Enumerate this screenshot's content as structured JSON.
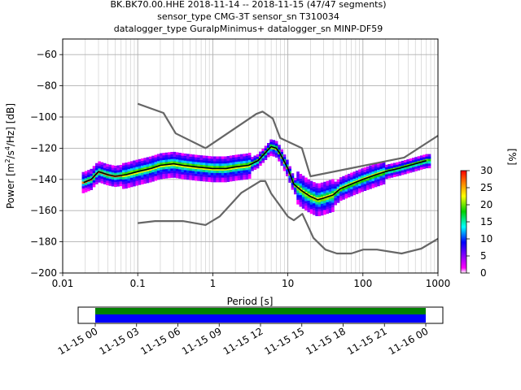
{
  "title": {
    "line1": "BK.BK70.00.HHE   2018-11-14 -- 2018-11-15  (47/47 segments)",
    "line2": "sensor_type CMG-3T sensor_sn T310034",
    "line3": "datalogger_type GuralpMinimus+ datalogger_sn MINP-DF59"
  },
  "chart_data": {
    "type": "heatmap",
    "xlabel": "Period [s]",
    "ylabel": "Power [m²/s⁴/Hz] [dB]",
    "x_scale": "log",
    "xlim": [
      0.01,
      1000
    ],
    "ylim": [
      -200,
      -50
    ],
    "x_ticks": [
      {
        "value": 0.01,
        "label": "0.01"
      },
      {
        "value": 0.1,
        "label": "0.1"
      },
      {
        "value": 1,
        "label": "1"
      },
      {
        "value": 10,
        "label": "10"
      },
      {
        "value": 100,
        "label": "100"
      },
      {
        "value": 1000,
        "label": "1000"
      }
    ],
    "y_ticks": [
      -60,
      -80,
      -100,
      -120,
      -140,
      -160,
      -180,
      -200
    ],
    "grid": true,
    "colorbar": {
      "label": "[%]",
      "range": [
        0,
        30
      ],
      "ticks": [
        0,
        5,
        10,
        15,
        20,
        25,
        30
      ],
      "colors": [
        "#ffffff",
        "#ff00ff",
        "#0000ff",
        "#00ffff",
        "#00d000",
        "#ffff00",
        "#ff8000",
        "#ff0000"
      ]
    },
    "series": [
      {
        "role": "mode",
        "color": "#000000",
        "x": [
          0.019,
          0.024,
          0.03,
          0.04,
          0.05,
          0.07,
          0.1,
          0.15,
          0.2,
          0.3,
          0.4,
          0.6,
          1.0,
          1.5,
          2.0,
          3.0,
          4.0,
          5.0,
          6.0,
          7.0,
          8.0,
          10,
          12,
          15,
          20,
          25,
          30,
          40,
          50,
          70,
          100,
          150,
          200,
          300,
          500,
          700
        ],
        "y": [
          -142,
          -140,
          -135,
          -137,
          -138,
          -137,
          -135,
          -133,
          -131,
          -130,
          -131,
          -132,
          -133,
          -133,
          -132,
          -131,
          -128,
          -123,
          -119,
          -120,
          -124,
          -133,
          -143,
          -147,
          -151,
          -153,
          -152,
          -150,
          -146,
          -143,
          -140,
          -137,
          -135,
          -133,
          -130,
          -128
        ]
      },
      {
        "role": "new-high-noise-model",
        "color": "#666666",
        "x": [
          0.1,
          0.22,
          0.32,
          0.8,
          3.8,
          4.6,
          6.3,
          7.9,
          15.4,
          20,
          354.8,
          1000
        ],
        "y": [
          -91.5,
          -97.4,
          -110.5,
          -120,
          -98,
          -96.5,
          -101,
          -113.5,
          -120,
          -138,
          -126,
          -112
        ]
      },
      {
        "role": "new-low-noise-model",
        "color": "#666666",
        "x": [
          0.1,
          0.17,
          0.4,
          0.8,
          1.24,
          2.4,
          4.3,
          5.0,
          6.0,
          10,
          12,
          15.6,
          21.9,
          31.6,
          45,
          70,
          101,
          154,
          328,
          600,
          1000
        ],
        "y": [
          -168,
          -166.7,
          -166.7,
          -169.2,
          -163.7,
          -148.6,
          -141.1,
          -141.1,
          -149,
          -163.8,
          -166.2,
          -162.1,
          -177.5,
          -185,
          -187.5,
          -187.5,
          -185,
          -185,
          -187.5,
          -184.4,
          -178
        ]
      }
    ]
  },
  "timeline": {
    "tick_labels": [
      "11-15 00",
      "11-15 03",
      "11-15 06",
      "11-15 09",
      "11-15 12",
      "11-15 15",
      "11-15 18",
      "11-15 21",
      "11-16 00"
    ],
    "data_color": "#0000ff",
    "coverage_color": "#008000"
  }
}
